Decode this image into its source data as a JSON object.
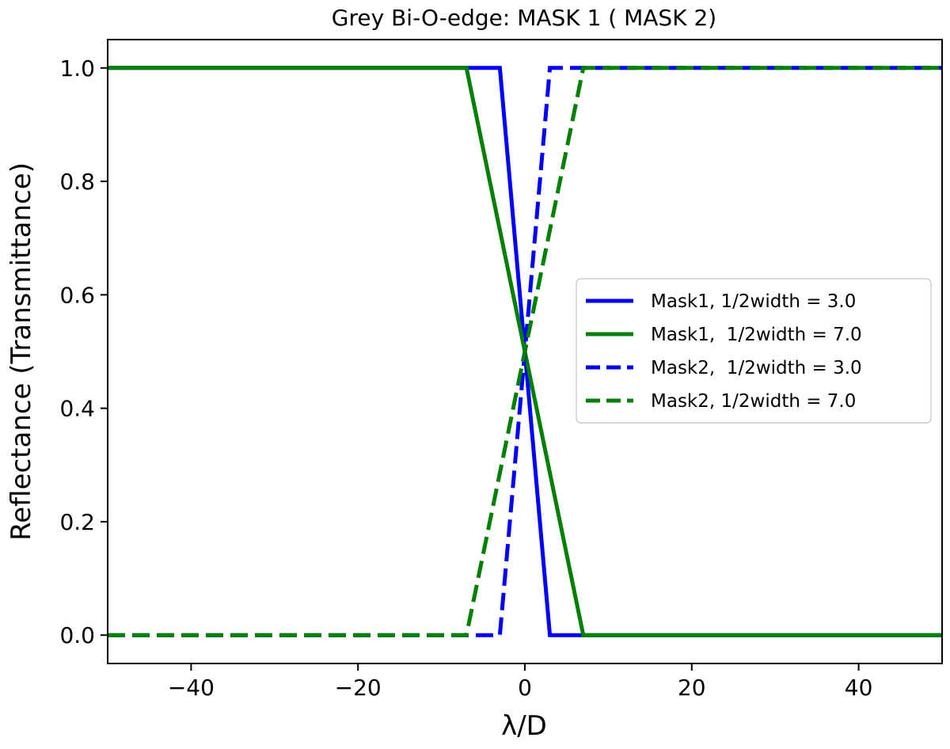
{
  "chart_data": {
    "type": "line",
    "title": "Grey Bi-O-edge: MASK 1 ( MASK 2)",
    "xlabel": "λ/D",
    "ylabel": "Reflectance (Transmittance)",
    "xlim": [
      -50,
      50
    ],
    "ylim": [
      -0.05,
      1.05
    ],
    "xticks": [
      -40,
      -20,
      0,
      20,
      40
    ],
    "xtick_labels": [
      "−40",
      "−20",
      "0",
      "20",
      "40"
    ],
    "yticks": [
      0.0,
      0.2,
      0.4,
      0.6,
      0.8,
      1.0
    ],
    "ytick_labels": [
      "0.0",
      "0.2",
      "0.4",
      "0.6",
      "0.8",
      "1.0"
    ],
    "grid": false,
    "legend_position": "center-right",
    "series": [
      {
        "name": "Mask1, 1/2width = 3.0",
        "color": "#0000ff",
        "dash": "solid",
        "x": [
          -50,
          -3,
          3,
          50
        ],
        "y": [
          1.0,
          1.0,
          0.0,
          0.0
        ]
      },
      {
        "name": "Mask1,  1/2width = 7.0",
        "color": "#008000",
        "dash": "solid",
        "x": [
          -50,
          -7,
          7,
          50
        ],
        "y": [
          1.0,
          1.0,
          0.0,
          0.0
        ]
      },
      {
        "name": "Mask2,  1/2width = 3.0",
        "color": "#0000ff",
        "dash": "dashed",
        "x": [
          -50,
          -3,
          3,
          50
        ],
        "y": [
          0.0,
          0.0,
          1.0,
          1.0
        ]
      },
      {
        "name": "Mask2, 1/2width = 7.0",
        "color": "#008000",
        "dash": "dashed",
        "x": [
          -50,
          -7,
          7,
          50
        ],
        "y": [
          0.0,
          0.0,
          1.0,
          1.0
        ]
      }
    ]
  }
}
